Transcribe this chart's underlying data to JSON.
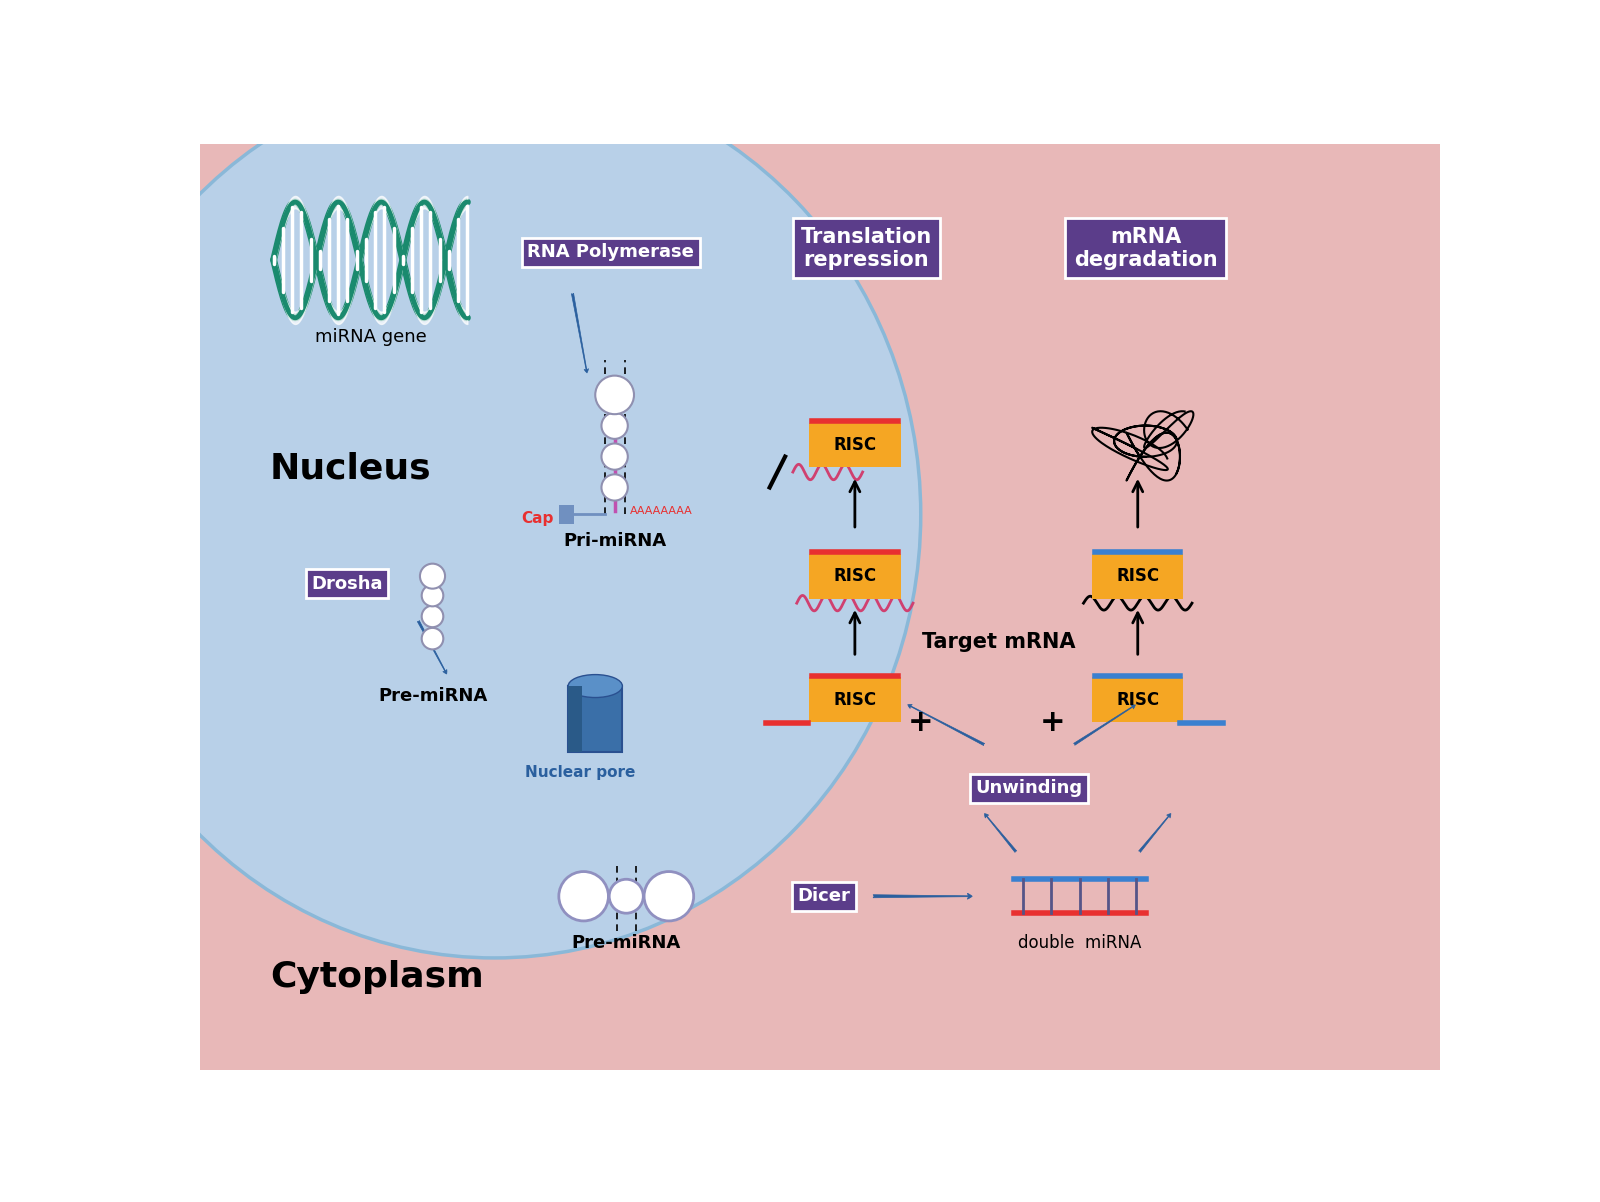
{
  "bg_nucleus": "#b8d0e8",
  "bg_cytoplasm": "#e8b8b8",
  "nucleus_label": "Nucleus",
  "cytoplasm_label": "Cytoplasm",
  "mirna_gene_label": "miRNA gene",
  "rna_pol_label": "RNA Polymerase",
  "drosha_label": "Drosha",
  "pre_mirna_label1": "Pre-miRNA",
  "pre_mirna_label2": "Pre-miRNA",
  "pri_mirna_label": "Pri-miRNA",
  "nuclear_pore_label": "Nuclear pore",
  "cap_label": "Cap",
  "aaa_label": "AAAAAAAA",
  "dicer_label": "Dicer",
  "double_mirna_label": "double  miRNA",
  "unwinding_label": "Unwinding",
  "target_mrna_label": "Target mRNA",
  "trans_rep_label": "Translation\nrepression",
  "mrna_deg_label": "mRNA\ndegradation",
  "risc_label": "RISC",
  "risc_color": "#f5a623",
  "box_color": "#5b3d8a",
  "box_text_color": "#ffffff",
  "arrow_color": "#2a5f9e",
  "red_color": "#e83030",
  "blue_color": "#3a80d0",
  "dna_color": "#1a8a6e",
  "pink_color": "#d04070",
  "nucleus_edge": "#8ab8d8"
}
